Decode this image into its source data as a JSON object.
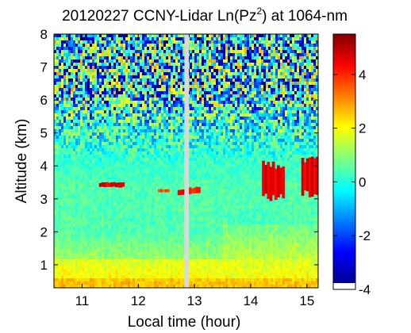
{
  "chart_data": {
    "type": "heatmap",
    "title_main": "20120227 CCNY-Lidar Ln(Pz",
    "title_sup": "2",
    "title_end": ") at 1064-nm",
    "xlabel": "Local time (hour)",
    "ylabel": "Altitude (km)",
    "xlim": [
      10.5,
      15.2
    ],
    "ylim": [
      0.3,
      8
    ],
    "xticks": [
      11,
      12,
      13,
      14,
      15
    ],
    "yticks": [
      1,
      2,
      3,
      4,
      5,
      6,
      7,
      8
    ],
    "colorbar": {
      "min": -4,
      "max": 5.5,
      "ticks": [
        4,
        2,
        0,
        -2,
        -4
      ]
    },
    "data_gap": [
      12.82,
      12.9
    ],
    "layers": [
      {
        "name_hidden": true,
        "x": [
          11.3,
          11.75
        ],
        "y": [
          3.35,
          3.5
        ],
        "value": 5
      },
      {
        "name_hidden": true,
        "x": [
          12.35,
          12.55
        ],
        "y": [
          3.2,
          3.3
        ],
        "value": 4
      },
      {
        "name_hidden": true,
        "x": [
          12.7,
          12.82
        ],
        "y": [
          3.1,
          3.3
        ],
        "value": 5
      },
      {
        "name_hidden": true,
        "x": [
          12.9,
          13.1
        ],
        "y": [
          3.15,
          3.35
        ],
        "value": 4.5
      },
      {
        "name_hidden": true,
        "x": [
          14.2,
          14.6
        ],
        "y": [
          3.0,
          4.1
        ],
        "value": 5
      },
      {
        "name_hidden": true,
        "x": [
          14.9,
          15.2
        ],
        "y": [
          3.1,
          4.2
        ],
        "value": 5
      }
    ]
  }
}
